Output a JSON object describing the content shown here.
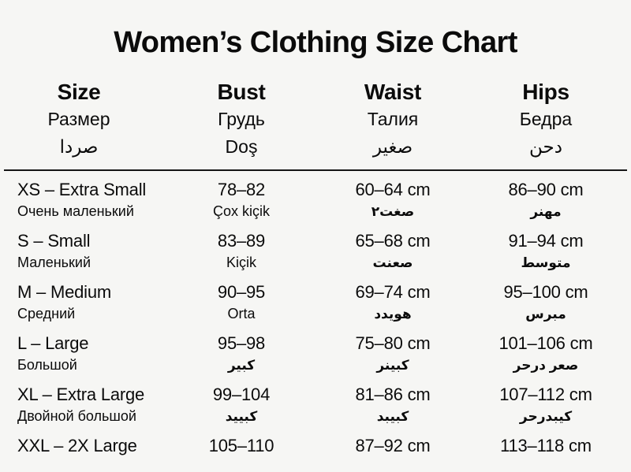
{
  "title": "Women’s Clothing Size Chart",
  "colors": {
    "background": "#f6f6f4",
    "text": "#0b0b0b",
    "divider": "#161616"
  },
  "table": {
    "headers": [
      {
        "en": "Size",
        "ru": "Размер",
        "third": "صردا"
      },
      {
        "en": "Bust",
        "ru": "Грудь",
        "third": "Doş"
      },
      {
        "en": "Waist",
        "ru": "Талия",
        "third": "صغير"
      },
      {
        "en": "Hips",
        "ru": "Бедра",
        "third": "دحن"
      }
    ],
    "rows": [
      {
        "size": "XS – Extra Small",
        "size_sub": "Очень маленький",
        "bust": "78–82",
        "bust_sub": "Çox kiçik",
        "waist": "60–64 cm",
        "waist_sub": "صغت٢",
        "hips": "86–90 cm",
        "hips_sub": "مهنر"
      },
      {
        "size": "S – Small",
        "size_sub": "Маленький",
        "bust": "83–89",
        "bust_sub": "Kiçik",
        "waist": "65–68 cm",
        "waist_sub": "صعنت",
        "hips": "91–94 cm",
        "hips_sub": "متوسط"
      },
      {
        "size": "M – Medium",
        "size_sub": "Средний",
        "bust": "90–95",
        "bust_sub": "Orta",
        "waist": "69–74 cm",
        "waist_sub": "هويدد",
        "hips": "95–100 cm",
        "hips_sub": "مبرس"
      },
      {
        "size": "L – Large",
        "size_sub": "Большой",
        "bust": "95–98",
        "bust_sub": "كبير",
        "waist": "75–80 cm",
        "waist_sub": "كبينر",
        "hips": "101–106 cm",
        "hips_sub": "صعر درحر"
      },
      {
        "size": "XL – Extra Large",
        "size_sub": "Двойной большой",
        "bust": "99–104",
        "bust_sub": "كبييد",
        "waist": "81–86 cm",
        "waist_sub": "كبيبد",
        "hips": "107–112 cm",
        "hips_sub": "كيبدرحر"
      },
      {
        "size": "XXL – 2X Large",
        "bust": "105–110",
        "waist": "87–92 cm",
        "hips": "113–118 cm"
      }
    ]
  }
}
